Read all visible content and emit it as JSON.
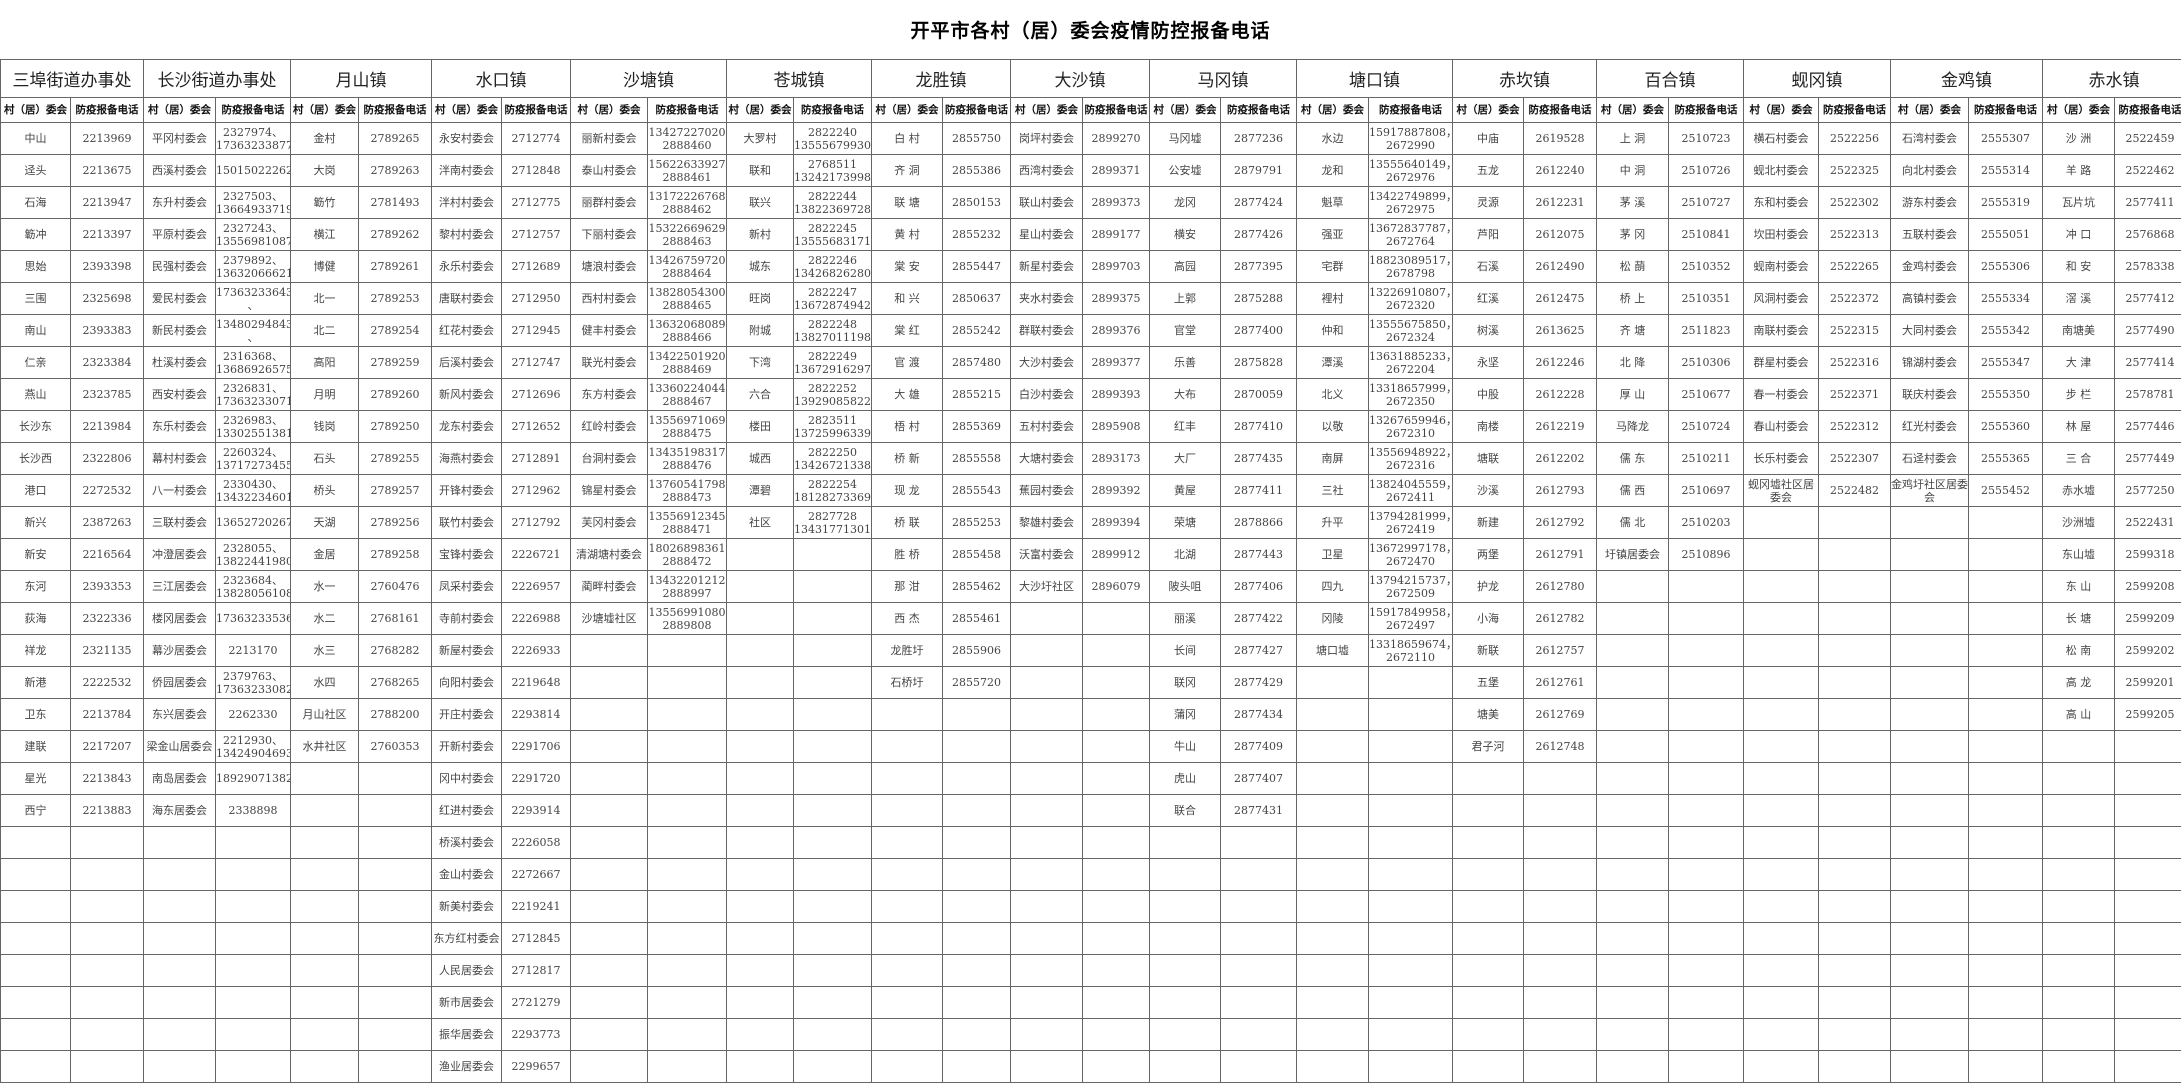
{
  "title": "开平市各村（居）委会疫情防控报备电话",
  "sub_headers": {
    "committee": "村（居）委会",
    "phone": "防疫报备电话"
  },
  "towns": [
    {
      "name": "三埠街道办事处",
      "rows": [
        [
          "中山",
          "2213969"
        ],
        [
          "迳头",
          "2213675"
        ],
        [
          "石海",
          "2213947"
        ],
        [
          "簕冲",
          "2213397"
        ],
        [
          "思始",
          "2393398"
        ],
        [
          "三围",
          "2325698"
        ],
        [
          "南山",
          "2393383"
        ],
        [
          "仁亲",
          "2323384"
        ],
        [
          "燕山",
          "2323785"
        ],
        [
          "长沙东",
          "2213984"
        ],
        [
          "长沙西",
          "2322806"
        ],
        [
          "港口",
          "2272532"
        ],
        [
          "新兴",
          "2387263"
        ],
        [
          "新安",
          "2216564"
        ],
        [
          "东河",
          "2393353"
        ],
        [
          "荻海",
          "2322336"
        ],
        [
          "祥龙",
          "2321135"
        ],
        [
          "新港",
          "2222532"
        ],
        [
          "卫东",
          "2213784"
        ],
        [
          "建联",
          "2217207"
        ],
        [
          "星光",
          "2213843"
        ],
        [
          "西宁",
          "2213883"
        ]
      ]
    },
    {
      "name": "长沙街道办事处",
      "rows": [
        [
          "平冈村委会",
          "2327974、\n17363233877"
        ],
        [
          "西溪村委会",
          "15015022262"
        ],
        [
          "东升村委会",
          "2327503、\n13664933719"
        ],
        [
          "平原村委会",
          "2327243、\n13556981087"
        ],
        [
          "民强村委会",
          "2379892、\n13632066621"
        ],
        [
          "爱民村委会",
          "17363233643\n、"
        ],
        [
          "新民村委会",
          "13480294843\n、"
        ],
        [
          "杜溪村委会",
          "2316368、\n13686926575"
        ],
        [
          "西安村委会",
          "2326831、\n17363233071"
        ],
        [
          "东乐村委会",
          "2326983、\n13302551381"
        ],
        [
          "幕村村委会",
          "2260324、\n13717273455"
        ],
        [
          "八一村委会",
          "2330430、\n13432234601"
        ],
        [
          "三联村委会",
          "13652720267"
        ],
        [
          "冲澄居委会",
          "2328055、\n13822441980"
        ],
        [
          "三江居委会",
          "2323684、\n13828056108"
        ],
        [
          "楼冈居委会",
          "17363233536"
        ],
        [
          "幕沙居委会",
          "2213170"
        ],
        [
          "侨园居委会",
          "2379763、\n17363233082"
        ],
        [
          "东兴居委会",
          "2262330"
        ],
        [
          "梁金山居委会",
          "2212930、\n13424904693"
        ],
        [
          "南岛居委会",
          "18929071382"
        ],
        [
          "海东居委会",
          "2338898"
        ]
      ]
    },
    {
      "name": "月山镇",
      "rows": [
        [
          "金村",
          "2789265"
        ],
        [
          "大岗",
          "2789263"
        ],
        [
          "簕竹",
          "2781493"
        ],
        [
          "横江",
          "2789262"
        ],
        [
          "博健",
          "2789261"
        ],
        [
          "北一",
          "2789253"
        ],
        [
          "北二",
          "2789254"
        ],
        [
          "高阳",
          "2789259"
        ],
        [
          "月明",
          "2789260"
        ],
        [
          "钱岗",
          "2789250"
        ],
        [
          "石头",
          "2789255"
        ],
        [
          "桥头",
          "2789257"
        ],
        [
          "天湖",
          "2789256"
        ],
        [
          "金居",
          "2789258"
        ],
        [
          "水一",
          "2760476"
        ],
        [
          "水二",
          "2768161"
        ],
        [
          "水三",
          "2768282"
        ],
        [
          "水四",
          "2768265"
        ],
        [
          "月山社区",
          "2788200"
        ],
        [
          "水井社区",
          "2760353"
        ]
      ]
    },
    {
      "name": "水口镇",
      "rows": [
        [
          "永安村委会",
          "2712774"
        ],
        [
          "泮南村委会",
          "2712848"
        ],
        [
          "泮村村委会",
          "2712775"
        ],
        [
          "黎村村委会",
          "2712757"
        ],
        [
          "永乐村委会",
          "2712689"
        ],
        [
          "唐联村委会",
          "2712950"
        ],
        [
          "红花村委会",
          "2712945"
        ],
        [
          "后溪村委会",
          "2712747"
        ],
        [
          "新风村委会",
          "2712696"
        ],
        [
          "龙东村委会",
          "2712652"
        ],
        [
          "海燕村委会",
          "2712891"
        ],
        [
          "开锋村委会",
          "2712962"
        ],
        [
          "联竹村委会",
          "2712792"
        ],
        [
          "宝锋村委会",
          "2226721"
        ],
        [
          "凤采村委会",
          "2226957"
        ],
        [
          "寺前村委会",
          "2226988"
        ],
        [
          "新屋村委会",
          "2226933"
        ],
        [
          "向阳村委会",
          "2219648"
        ],
        [
          "开庄村委会",
          "2293814"
        ],
        [
          "开新村委会",
          "2291706"
        ],
        [
          "冈中村委会",
          "2291720"
        ],
        [
          "红进村委会",
          "2293914"
        ],
        [
          "桥溪村委会",
          "2226058"
        ],
        [
          "金山村委会",
          "2272667"
        ],
        [
          "新美村委会",
          "2219241"
        ],
        [
          "东方红村委会",
          "2712845"
        ],
        [
          "人民居委会",
          "2712817"
        ],
        [
          "新市居委会",
          "2721279"
        ],
        [
          "振华居委会",
          "2293773"
        ],
        [
          "渔业居委会",
          "2299657"
        ]
      ]
    },
    {
      "name": "沙塘镇",
      "rows": [
        [
          "丽新村委会",
          "13427227020\n2888460"
        ],
        [
          "泰山村委会",
          "15622633927\n2888461"
        ],
        [
          "丽群村委会",
          "13172226768\n2888462"
        ],
        [
          "下丽村委会",
          "15322669629\n2888463"
        ],
        [
          "塘浪村委会",
          "13426759720\n2888464"
        ],
        [
          "西村村委会",
          "13828054300\n2888465"
        ],
        [
          "健丰村委会",
          "13632068089\n2888466"
        ],
        [
          "联光村委会",
          "13422501920\n2888469"
        ],
        [
          "东方村委会",
          "13360224044\n2888467"
        ],
        [
          "红岭村委会",
          "13556971069\n2888475"
        ],
        [
          "台洞村委会",
          "13435198317\n2888476"
        ],
        [
          "锦星村委会",
          "13760541798\n2888473"
        ],
        [
          "芙冈村委会",
          "13556912345\n2888471"
        ],
        [
          "清湖塘村委会",
          "18026898361\n2888472"
        ],
        [
          "蔺畔村委会",
          "13432201212\n2888997"
        ],
        [
          "沙塘墟社区",
          "13556991080\n2889808"
        ]
      ]
    },
    {
      "name": "苍城镇",
      "rows": [
        [
          "大罗村",
          "2822240\n13555679930"
        ],
        [
          "联和",
          "2768511\n13242173998"
        ],
        [
          "联兴",
          "2822244\n13822369728"
        ],
        [
          "新村",
          "2822245\n13555683171"
        ],
        [
          "城东",
          "2822246\n13426826280"
        ],
        [
          "旺岗",
          "2822247\n13672874942"
        ],
        [
          "附城",
          "2822248\n13827011198"
        ],
        [
          "下湾",
          "2822249\n13672916297"
        ],
        [
          "六合",
          "2822252\n13929085822"
        ],
        [
          "楼田",
          "2823511\n13725996339"
        ],
        [
          "城西",
          "2822250\n13426721338"
        ],
        [
          "潭碧",
          "2822254\n18128273369"
        ],
        [
          "社区",
          "2827728\n13431771301"
        ]
      ]
    },
    {
      "name": "龙胜镇",
      "rows": [
        [
          "白 村",
          "2855750"
        ],
        [
          "齐 洞",
          "2855386"
        ],
        [
          "联 塘",
          "2850153"
        ],
        [
          "黄 村",
          "2855232"
        ],
        [
          "棠 安",
          "2855447"
        ],
        [
          "和 兴",
          "2850637"
        ],
        [
          "棠 红",
          "2855242"
        ],
        [
          "官 渡",
          "2857480"
        ],
        [
          "大 雄",
          "2855215"
        ],
        [
          "梧 村",
          "2855369"
        ],
        [
          "桥 新",
          "2855558"
        ],
        [
          "现 龙",
          "2855543"
        ],
        [
          "桥 联",
          "2855253"
        ],
        [
          "胜 桥",
          "2855458"
        ],
        [
          "那 泔",
          "2855462"
        ],
        [
          "西 杰",
          "2855461"
        ],
        [
          "龙胜圩",
          "2855906"
        ],
        [
          "石桥圩",
          "2855720"
        ]
      ]
    },
    {
      "name": "大沙镇",
      "rows": [
        [
          "岗坪村委会",
          "2899270"
        ],
        [
          "西湾村委会",
          "2899371"
        ],
        [
          "联山村委会",
          "2899373"
        ],
        [
          "星山村委会",
          "2899177"
        ],
        [
          "新星村委会",
          "2899703"
        ],
        [
          "夹水村委会",
          "2899375"
        ],
        [
          "群联村委会",
          "2899376"
        ],
        [
          "大沙村委会",
          "2899377"
        ],
        [
          "白沙村委会",
          "2899393"
        ],
        [
          "五村村委会",
          "2895908"
        ],
        [
          "大塘村委会",
          "2893173"
        ],
        [
          "蕉园村委会",
          "2899392"
        ],
        [
          "黎雄村委会",
          "2899394"
        ],
        [
          "沃富村委会",
          "2899912"
        ],
        [
          "大沙圩社区",
          "2896079"
        ]
      ]
    },
    {
      "name": "马冈镇",
      "rows": [
        [
          "马冈墟",
          "2877236"
        ],
        [
          "公安墟",
          "2879791"
        ],
        [
          "龙冈",
          "2877424"
        ],
        [
          "横安",
          "2877426"
        ],
        [
          "高园",
          "2877395"
        ],
        [
          "上郭",
          "2875288"
        ],
        [
          "官堂",
          "2877400"
        ],
        [
          "乐善",
          "2875828"
        ],
        [
          "大布",
          "2870059"
        ],
        [
          "红丰",
          "2877410"
        ],
        [
          "大厂",
          "2877435"
        ],
        [
          "黄屋",
          "2877411"
        ],
        [
          "荣塘",
          "2878866"
        ],
        [
          "北湖",
          "2877443"
        ],
        [
          "陂头咀",
          "2877406"
        ],
        [
          "丽溪",
          "2877422"
        ],
        [
          "长间",
          "2877427"
        ],
        [
          "联冈",
          "2877429"
        ],
        [
          "蒲冈",
          "2877434"
        ],
        [
          "牛山",
          "2877409"
        ],
        [
          "虎山",
          "2877407"
        ],
        [
          "联合",
          "2877431"
        ]
      ]
    },
    {
      "name": "塘口镇",
      "rows": [
        [
          "水边",
          "15917887808，\n2672990"
        ],
        [
          "龙和",
          "13555640149，\n2672976"
        ],
        [
          "魁草",
          "13422749899，\n2672975"
        ],
        [
          "强亚",
          "13672837787，\n2672764"
        ],
        [
          "宅群",
          "18823089517，\n2678798"
        ],
        [
          "裡村",
          "13226910807，\n2672320"
        ],
        [
          "仲和",
          "13555675850，\n2672324"
        ],
        [
          "潭溪",
          "13631885233，\n2672204"
        ],
        [
          "北义",
          "13318657999，\n2672350"
        ],
        [
          "以敬",
          "13267659946，\n2672310"
        ],
        [
          "南屏",
          "13556948922，\n2672316"
        ],
        [
          "三社",
          "13824045559，\n2672411"
        ],
        [
          "升平",
          "13794281999，\n2672419"
        ],
        [
          "卫星",
          "13672997178，\n2672470"
        ],
        [
          "四九",
          "13794215737，\n2672509"
        ],
        [
          "冈陵",
          "15917849958，\n2672497"
        ],
        [
          "塘口墟",
          "13318659674，\n2672110"
        ]
      ]
    },
    {
      "name": "赤坎镇",
      "rows": [
        [
          "中庙",
          "2619528"
        ],
        [
          "五龙",
          "2612240"
        ],
        [
          "灵源",
          "2612231"
        ],
        [
          "芦阳",
          "2612075"
        ],
        [
          "石溪",
          "2612490"
        ],
        [
          "红溪",
          "2612475"
        ],
        [
          "树溪",
          "2613625"
        ],
        [
          "永坚",
          "2612246"
        ],
        [
          "中股",
          "2612228"
        ],
        [
          "南楼",
          "2612219"
        ],
        [
          "塘联",
          "2612202"
        ],
        [
          "沙溪",
          "2612793"
        ],
        [
          "新建",
          "2612792"
        ],
        [
          "两堡",
          "2612791"
        ],
        [
          "护龙",
          "2612780"
        ],
        [
          "小海",
          "2612782"
        ],
        [
          "新联",
          "2612757"
        ],
        [
          "五堡",
          "2612761"
        ],
        [
          "塘美",
          "2612769"
        ],
        [
          "君子河",
          "2612748"
        ]
      ]
    },
    {
      "name": "百合镇",
      "rows": [
        [
          "上 洞",
          "2510723"
        ],
        [
          "中 洞",
          "2510726"
        ],
        [
          "茅 溪",
          "2510727"
        ],
        [
          "茅 冈",
          "2510841"
        ],
        [
          "松 蓢",
          "2510352"
        ],
        [
          "桥 上",
          "2510351"
        ],
        [
          "齐 塘",
          "2511823"
        ],
        [
          "北 降",
          "2510306"
        ],
        [
          "厚 山",
          "2510677"
        ],
        [
          "马降龙",
          "2510724"
        ],
        [
          "儒 东",
          "2510211"
        ],
        [
          "儒 西",
          "2510697"
        ],
        [
          "儒 北",
          "2510203"
        ],
        [
          "圩镇居委会",
          "2510896"
        ]
      ]
    },
    {
      "name": "蚬冈镇",
      "rows": [
        [
          "横石村委会",
          "2522256"
        ],
        [
          "蚬北村委会",
          "2522325"
        ],
        [
          "东和村委会",
          "2522302"
        ],
        [
          "坎田村委会",
          "2522313"
        ],
        [
          "蚬南村委会",
          "2522265"
        ],
        [
          "风洞村委会",
          "2522372"
        ],
        [
          "南联村委会",
          "2522315"
        ],
        [
          "群星村委会",
          "2522316"
        ],
        [
          "春一村委会",
          "2522371"
        ],
        [
          "春山村委会",
          "2522312"
        ],
        [
          "长乐村委会",
          "2522307"
        ],
        [
          "蚬冈墟社区居委会",
          "2522482"
        ]
      ]
    },
    {
      "name": "金鸡镇",
      "rows": [
        [
          "石湾村委会",
          "2555307"
        ],
        [
          "向北村委会",
          "2555314"
        ],
        [
          "游东村委会",
          "2555319"
        ],
        [
          "五联村委会",
          "2555051"
        ],
        [
          "金鸡村委会",
          "2555306"
        ],
        [
          "高镇村委会",
          "2555334"
        ],
        [
          "大同村委会",
          "2555342"
        ],
        [
          "锦湖村委会",
          "2555347"
        ],
        [
          "联庆村委会",
          "2555350"
        ],
        [
          "红光村委会",
          "2555360"
        ],
        [
          "石迳村委会",
          "2555365"
        ],
        [
          "金鸡圩社区居委会",
          "2555452"
        ]
      ]
    },
    {
      "name": "赤水镇",
      "rows": [
        [
          "沙 洲",
          "2522459"
        ],
        [
          "羊 路",
          "2522462"
        ],
        [
          "瓦片坑",
          "2577411"
        ],
        [
          "冲 口",
          "2576868"
        ],
        [
          "和 安",
          "2578338"
        ],
        [
          "滘 溪",
          "2577412"
        ],
        [
          "南塘美",
          "2577490"
        ],
        [
          "大 津",
          "2577414"
        ],
        [
          "步 栏",
          "2578781"
        ],
        [
          "林 屋",
          "2577446"
        ],
        [
          "三 合",
          "2577449"
        ],
        [
          "赤水墟",
          "2577250"
        ],
        [
          "沙洲墟",
          "2522431"
        ],
        [
          "东山墟",
          "2599318"
        ],
        [
          "东 山",
          "2599208"
        ],
        [
          "长 塘",
          "2599209"
        ],
        [
          "松 南",
          "2599202"
        ],
        [
          "高 龙",
          "2599201"
        ],
        [
          "高 山",
          "2599205"
        ]
      ]
    }
  ]
}
